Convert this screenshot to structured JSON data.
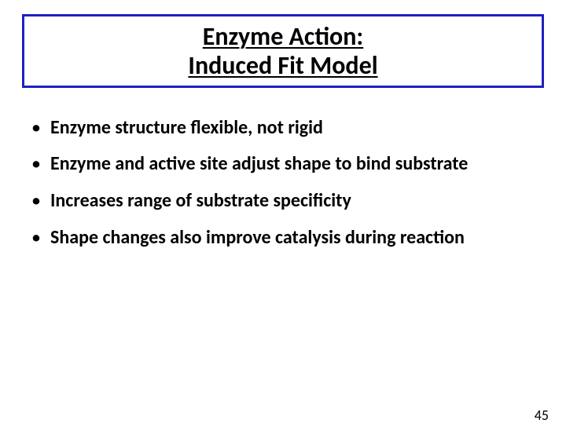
{
  "title": {
    "line1": "Enzyme Action:",
    "line2": "Induced Fit Model",
    "font_size": 32,
    "font_weight": "bold",
    "color": "#000000",
    "border_color": "#2020c0",
    "underline": true
  },
  "bullets": {
    "items": [
      "Enzyme structure flexible, not rigid",
      "Enzyme and active site adjust shape to bind substrate",
      "Increases range of substrate specificity",
      "Shape changes also improve catalysis during reaction"
    ],
    "font_size": 24,
    "font_weight": "bold",
    "color": "#000000",
    "line_height": 1.95,
    "marker": "•"
  },
  "page_number": {
    "value": "45",
    "font_size": 18,
    "color": "#000000"
  },
  "background_color": "#ffffff"
}
